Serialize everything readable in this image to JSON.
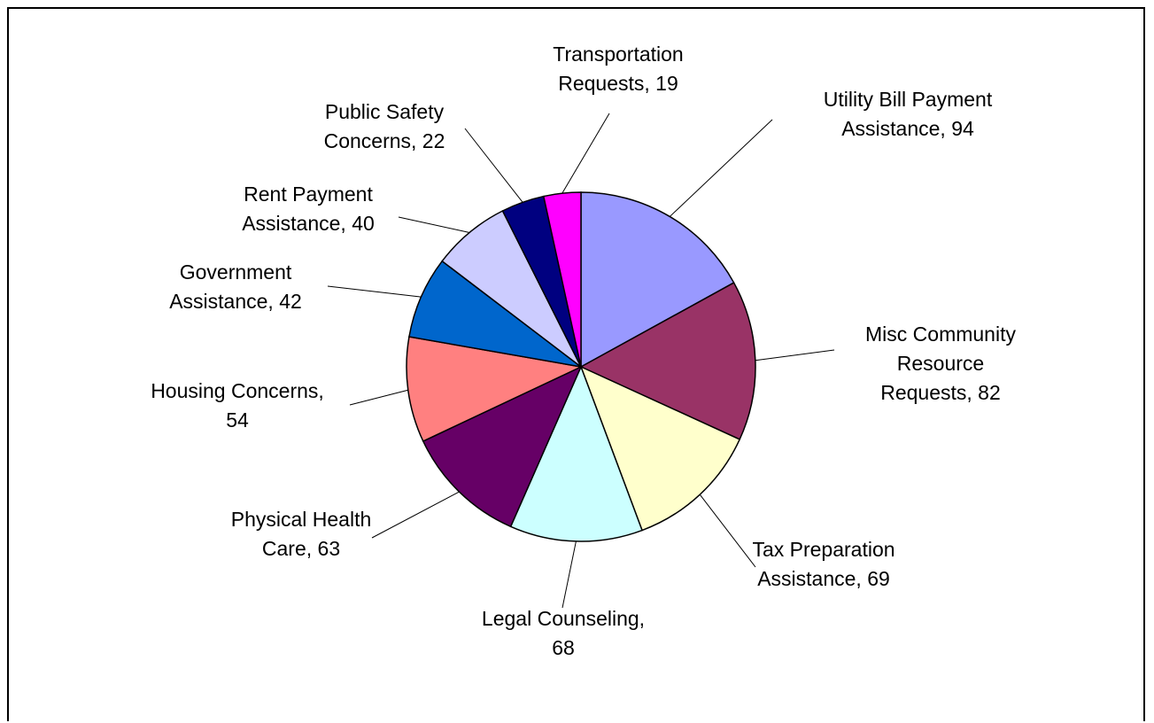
{
  "chart_data": {
    "type": "pie",
    "categories": [
      "Utility Bill Payment Assistance",
      "Misc Community Resource Requests",
      "Tax Preparation Assistance",
      "Legal Counseling",
      "Physical Health Care",
      "Housing Concerns",
      "Government Assistance",
      "Rent Payment Assistance",
      "Public Safety Concerns",
      "Transportation Requests"
    ],
    "values": [
      94,
      82,
      69,
      68,
      63,
      54,
      42,
      40,
      22,
      19
    ],
    "colors": [
      "#9999ff",
      "#993366",
      "#ffffcc",
      "#ccffff",
      "#660066",
      "#ff8080",
      "#0066cc",
      "#ccccff",
      "#000080",
      "#ff00ff"
    ],
    "data_labels": [
      [
        "Utility Bill Payment",
        "Assistance, 94"
      ],
      [
        "Misc Community",
        "Resource",
        "Requests, 82"
      ],
      [
        "Tax Preparation",
        "Assistance, 69"
      ],
      [
        "Legal Counseling,",
        "68"
      ],
      [
        "Physical Health",
        "Care, 63"
      ],
      [
        "Housing Concerns,",
        "54"
      ],
      [
        "Government",
        "Assistance, 42"
      ],
      [
        "Rent Payment",
        "Assistance, 40"
      ],
      [
        "Public Safety",
        "Concerns, 22"
      ],
      [
        "Transportation",
        "Requests, 19"
      ]
    ],
    "start_angle": "12 o'clock",
    "direction": "clockwise",
    "legend": "none"
  }
}
